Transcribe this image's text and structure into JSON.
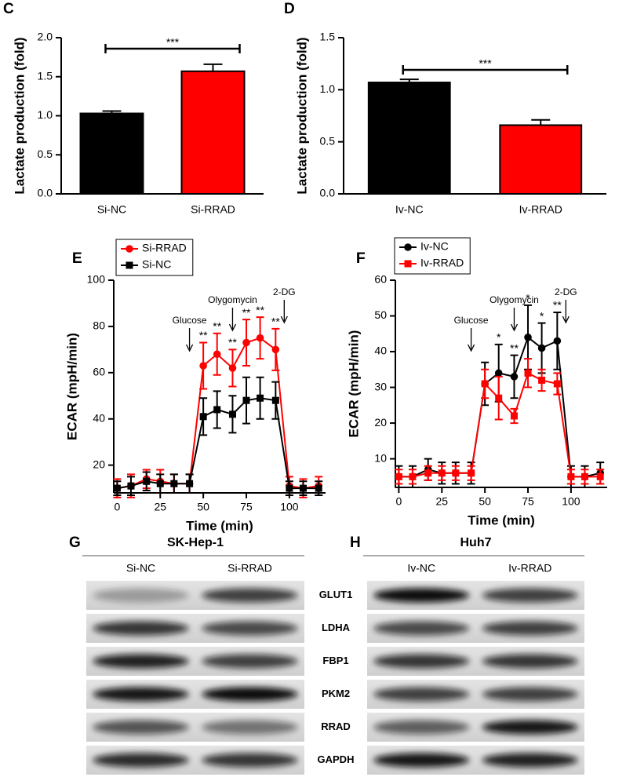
{
  "chart_data": [
    {
      "type": "bar",
      "panel": "C",
      "ylabel": "Lactate production (fold)",
      "categories": [
        "Si-NC",
        "Si-RRAD"
      ],
      "values": [
        1.03,
        1.57
      ],
      "errors": [
        0.03,
        0.09
      ],
      "colors": [
        "#000000",
        "#ff0000"
      ],
      "ylim": [
        0,
        2.0
      ],
      "yticks": [
        {
          "value": 0,
          "label": "0.0"
        },
        0.5,
        {
          "value": 1,
          "label": "1.0"
        },
        1.5,
        {
          "value": 2,
          "label": "2.0"
        }
      ],
      "annotation": "***"
    },
    {
      "type": "bar",
      "panel": "D",
      "ylabel": "Lactate production (fold)",
      "categories": [
        "Iv-NC",
        "Iv-RRAD"
      ],
      "values": [
        1.07,
        0.66
      ],
      "errors": [
        0.03,
        0.05
      ],
      "colors": [
        "#000000",
        "#ff0000"
      ],
      "ylim": [
        0,
        1.5
      ],
      "yticks": [
        {
          "value": 0,
          "label": "0.0"
        },
        0.5,
        {
          "value": 1,
          "label": "1.0"
        },
        1.5
      ],
      "annotation": "***"
    },
    {
      "type": "line",
      "panel": "E",
      "ylabel": "ECAR (mpH/min)",
      "xlabel": "Time (min)",
      "x": [
        0,
        8,
        17,
        25,
        33,
        42,
        50,
        58,
        67,
        75,
        83,
        92,
        100,
        108,
        117
      ],
      "xlim": [
        -2,
        121
      ],
      "xticks": [
        0,
        25,
        50,
        75,
        100
      ],
      "ylim": [
        8,
        100
      ],
      "yticks": [
        20,
        40,
        60,
        80,
        100
      ],
      "series": [
        {
          "name": "Si-RRAD",
          "color": "#ff0000",
          "marker": "circle",
          "values": [
            10,
            11,
            14,
            13,
            12,
            12,
            63,
            68,
            62,
            73,
            75,
            70,
            11,
            10,
            11
          ],
          "errors": [
            4,
            5,
            4,
            5,
            4,
            4,
            10,
            9,
            8,
            10,
            9,
            9,
            4,
            4,
            4
          ]
        },
        {
          "name": "Si-NC",
          "color": "#000000",
          "marker": "square",
          "values": [
            10,
            11,
            13,
            12,
            12,
            12,
            41,
            44,
            42,
            48,
            49,
            48,
            10,
            10,
            10
          ],
          "errors": [
            3,
            4,
            4,
            4,
            4,
            4,
            8,
            8,
            8,
            10,
            9,
            8,
            3,
            3,
            3
          ]
        }
      ],
      "significance_labels": [
        null,
        null,
        null,
        null,
        null,
        null,
        "**",
        "**",
        "**",
        "**",
        "**",
        "**",
        null,
        null,
        null
      ],
      "events": [
        {
          "label": "Glucose",
          "x": 42
        },
        {
          "label": "Olygomycin",
          "x": 67
        },
        {
          "label": "2-DG",
          "x": 97
        }
      ]
    },
    {
      "type": "line",
      "panel": "F",
      "ylabel": "ECAR (mpH/min)",
      "xlabel": "Time (min)",
      "x": [
        0,
        8,
        17,
        25,
        33,
        42,
        50,
        58,
        67,
        75,
        83,
        92,
        100,
        108,
        117
      ],
      "xlim": [
        -2,
        121
      ],
      "xticks": [
        0,
        25,
        50,
        75,
        100
      ],
      "ylim": [
        2,
        60
      ],
      "yticks": [
        10,
        20,
        30,
        40,
        50,
        60
      ],
      "series": [
        {
          "name": "Iv-NC",
          "color": "#000000",
          "marker": "circle",
          "values": [
            5,
            5,
            7,
            6,
            6,
            6,
            31,
            34,
            33,
            44,
            41,
            43,
            5,
            5,
            6
          ],
          "errors": [
            3,
            3,
            3,
            3,
            3,
            3,
            6,
            8,
            6,
            9,
            7,
            8,
            3,
            3,
            3
          ]
        },
        {
          "name": "Iv-RRAD",
          "color": "#ff0000",
          "marker": "square",
          "values": [
            5,
            5,
            6,
            6,
            6,
            6,
            31,
            27,
            22,
            34,
            32,
            31,
            5,
            5,
            5
          ],
          "errors": [
            2,
            2,
            2,
            2,
            2,
            2,
            4,
            6,
            2,
            4,
            3,
            3,
            2,
            2,
            2
          ]
        }
      ],
      "significance_labels": [
        null,
        null,
        null,
        null,
        null,
        null,
        null,
        "*",
        "**",
        "*",
        "*",
        "**",
        null,
        null,
        null
      ],
      "events": [
        {
          "label": "Glucose",
          "x": 42
        },
        {
          "label": "Olygomycin",
          "x": 67
        },
        {
          "label": "2-DG",
          "x": 97
        }
      ]
    }
  ],
  "blots": {
    "proteins": [
      "GLUT1",
      "LDHA",
      "FBP1",
      "PKM2",
      "RRAD",
      "GAPDH"
    ],
    "panels": [
      {
        "label": "G",
        "title": "SK-Hep-1",
        "lanes": [
          "Si-NC",
          "Si-RRAD"
        ]
      },
      {
        "label": "H",
        "title": "Huh7",
        "lanes": [
          "Iv-NC",
          "Iv-RRAD"
        ]
      }
    ]
  }
}
